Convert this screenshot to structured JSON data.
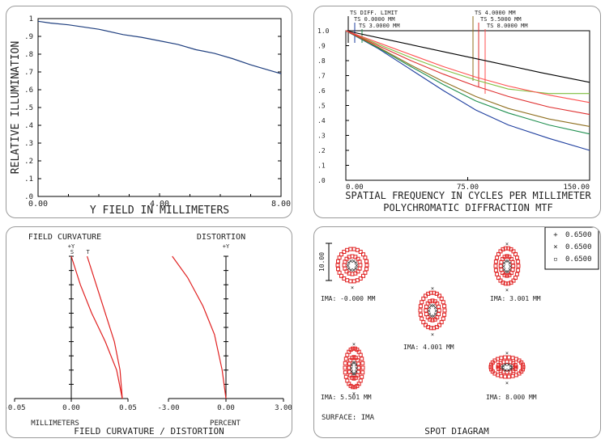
{
  "chart_data": [
    {
      "type": "line",
      "ylabel": "RELATIVE ILLUMINATION",
      "xlabel": "Y FIELD IN MILLIMETERS",
      "xlim": [
        0,
        8
      ],
      "ylim": [
        0,
        1
      ],
      "x_ticks": [
        "0.00",
        "4.00",
        "8.00"
      ],
      "y_ticks": [
        ".0",
        ".1",
        ".2",
        ".3",
        ".4",
        ".5",
        ".6",
        ".7",
        ".8",
        ".9",
        "1"
      ],
      "series": [
        {
          "color": "#1f3f7f",
          "x": [
            0,
            0.4,
            1.0,
            2.0,
            2.8,
            3.4,
            4.0,
            4.6,
            5.2,
            5.8,
            6.4,
            7.0,
            7.6,
            8.0
          ],
          "y": [
            0.985,
            0.975,
            0.965,
            0.94,
            0.91,
            0.895,
            0.875,
            0.855,
            0.825,
            0.805,
            0.775,
            0.74,
            0.71,
            0.69
          ]
        }
      ]
    },
    {
      "type": "line",
      "title": "POLYCHROMATIC DIFFRACTION MTF",
      "xlabel": "SPATIAL FREQUENCY IN CYCLES PER MILLIMETER",
      "xlim": [
        0,
        150
      ],
      "ylim": [
        0,
        1
      ],
      "x_ticks": [
        "0.00",
        "75.00",
        "150.00"
      ],
      "y_ticks": [
        ".0",
        ".1",
        ".2",
        ".3",
        ".4",
        ".5",
        ".6",
        ".7",
        ".8",
        ".9",
        "1.0"
      ],
      "legend": [
        "TS DIFF. LIMIT",
        "TS 0.0000 MM",
        "TS 3.0000 MM",
        "TS 4.0000 MM",
        "TS 5.5000 MM",
        "TS 8.0000 MM"
      ],
      "series": [
        {
          "color": "#000000",
          "x": [
            0,
            30,
            60,
            90,
            120,
            150
          ],
          "y": [
            1.0,
            0.93,
            0.86,
            0.79,
            0.72,
            0.655
          ]
        },
        {
          "color": "#1f3f9f",
          "x": [
            0,
            20,
            40,
            60,
            80,
            100,
            125,
            150
          ],
          "y": [
            1.0,
            0.88,
            0.74,
            0.6,
            0.47,
            0.37,
            0.28,
            0.2
          ]
        },
        {
          "color": "#1f8f4f",
          "x": [
            0,
            20,
            40,
            60,
            80,
            100,
            125,
            150
          ],
          "y": [
            1.0,
            0.885,
            0.76,
            0.64,
            0.53,
            0.45,
            0.37,
            0.31
          ]
        },
        {
          "color": "#7fbf3f",
          "x": [
            0,
            20,
            40,
            60,
            80,
            100,
            125,
            150
          ],
          "y": [
            1.0,
            0.91,
            0.82,
            0.74,
            0.67,
            0.61,
            0.58,
            0.58
          ]
        },
        {
          "color": "#8f6f1f",
          "x": [
            0,
            20,
            40,
            60,
            80,
            100,
            125,
            150
          ],
          "y": [
            1.0,
            0.89,
            0.77,
            0.66,
            0.56,
            0.48,
            0.41,
            0.36
          ]
        },
        {
          "color": "#df2f2f",
          "x": [
            0,
            20,
            40,
            60,
            80,
            100,
            125,
            150
          ],
          "y": [
            1.0,
            0.9,
            0.8,
            0.71,
            0.63,
            0.56,
            0.49,
            0.44
          ]
        },
        {
          "color": "#ff4f4f",
          "x": [
            0,
            20,
            40,
            60,
            80,
            100,
            125,
            150
          ],
          "y": [
            1.0,
            0.92,
            0.84,
            0.76,
            0.69,
            0.63,
            0.57,
            0.52
          ]
        }
      ]
    },
    {
      "type": "line",
      "title": "FIELD CURVATURE / DISTORTION",
      "subplots": [
        {
          "title": "FIELD CURVATURE",
          "xlabel": "MILLIMETERS",
          "xlim": [
            -0.05,
            0.05
          ],
          "x_ticks": [
            "-0.05",
            "0.00",
            "0.05"
          ],
          "y_label": "+Y",
          "series": [
            {
              "name": "S",
              "color": "#e02020",
              "x": [
                0.0,
                0.008,
                0.018,
                0.03,
                0.04,
                0.045
              ],
              "y": [
                1.0,
                0.8,
                0.6,
                0.4,
                0.2,
                0.0
              ]
            },
            {
              "name": "T",
              "color": "#e02020",
              "x": [
                0.014,
                0.022,
                0.03,
                0.038,
                0.043,
                0.045
              ],
              "y": [
                1.0,
                0.8,
                0.6,
                0.4,
                0.2,
                0.0
              ]
            }
          ]
        },
        {
          "title": "DISTORTION",
          "xlabel": "PERCENT",
          "xlim": [
            -3,
            3
          ],
          "x_ticks": [
            "-3.00",
            "0.00",
            "3.00"
          ],
          "y_label": "+Y",
          "series": [
            {
              "color": "#e02020",
              "x": [
                -2.8,
                -2.0,
                -1.2,
                -0.6,
                -0.2,
                0.0
              ],
              "y": [
                1.0,
                0.85,
                0.65,
                0.45,
                0.2,
                0.0
              ]
            }
          ]
        }
      ]
    },
    {
      "type": "scatter",
      "title": "SPOT DIAGRAM",
      "surface_label": "SURFACE: IMA",
      "scale_label": "10.00",
      "legend": [
        {
          "symbol": "+",
          "label": "0.6500",
          "color": "#1f3f9f"
        },
        {
          "symbol": "×",
          "label": "0.6500",
          "color": "#2f9f2f"
        },
        {
          "symbol": "▫",
          "label": "0.6500",
          "color": "#e02020"
        }
      ],
      "fields": [
        "IMA: -0.000 MM",
        "IMA: 3.001 MM",
        "IMA: 4.001 MM",
        "IMA: 5.501 MM",
        "IMA: 8.000 MM"
      ]
    }
  ]
}
